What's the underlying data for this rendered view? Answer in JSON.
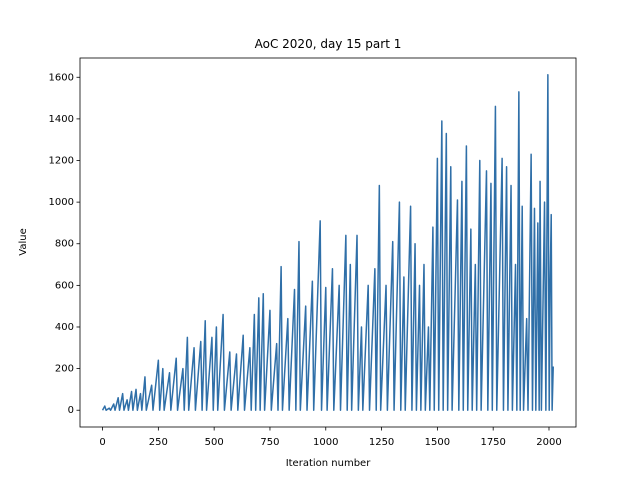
{
  "chart_data": {
    "type": "line",
    "title": "AoC 2020, day 15 part 1",
    "x_label": "Iteration number",
    "y_label": "Value",
    "color": "#2f6fa8",
    "x": [
      0,
      10,
      16,
      30,
      36,
      50,
      56,
      70,
      76,
      90,
      96,
      110,
      116,
      130,
      136,
      150,
      156,
      170,
      176,
      190,
      196,
      220,
      226,
      250,
      256,
      270,
      276,
      300,
      306,
      330,
      336,
      360,
      366,
      380,
      386,
      410,
      416,
      440,
      446,
      460,
      466,
      490,
      496,
      510,
      516,
      540,
      546,
      570,
      576,
      600,
      606,
      630,
      636,
      660,
      666,
      680,
      686,
      700,
      706,
      720,
      726,
      750,
      756,
      780,
      786,
      800,
      806,
      830,
      836,
      860,
      866,
      880,
      886,
      910,
      916,
      940,
      946,
      975,
      981,
      1000,
      1006,
      1030,
      1036,
      1060,
      1066,
      1090,
      1096,
      1110,
      1116,
      1140,
      1146,
      1160,
      1166,
      1190,
      1196,
      1220,
      1226,
      1240,
      1246,
      1270,
      1276,
      1300,
      1306,
      1330,
      1336,
      1350,
      1356,
      1380,
      1386,
      1400,
      1406,
      1420,
      1426,
      1440,
      1446,
      1460,
      1466,
      1480,
      1486,
      1500,
      1506,
      1520,
      1526,
      1540,
      1546,
      1560,
      1566,
      1590,
      1596,
      1610,
      1616,
      1630,
      1636,
      1650,
      1656,
      1670,
      1676,
      1690,
      1696,
      1720,
      1726,
      1740,
      1746,
      1760,
      1766,
      1790,
      1796,
      1810,
      1816,
      1830,
      1836,
      1850,
      1856,
      1865,
      1871,
      1880,
      1886,
      1900,
      1906,
      1920,
      1926,
      1935,
      1941,
      1950,
      1956,
      1960,
      1966,
      1980,
      1986,
      1995,
      2001,
      2005,
      2010,
      2014,
      2019
    ],
    "values": [
      0,
      20,
      0,
      10,
      0,
      30,
      0,
      60,
      0,
      80,
      0,
      50,
      0,
      90,
      0,
      100,
      0,
      80,
      0,
      160,
      0,
      120,
      0,
      240,
      0,
      200,
      0,
      180,
      0,
      250,
      0,
      200,
      0,
      350,
      0,
      300,
      0,
      330,
      0,
      430,
      0,
      350,
      0,
      400,
      0,
      460,
      0,
      280,
      0,
      270,
      0,
      360,
      0,
      300,
      0,
      460,
      0,
      540,
      0,
      560,
      0,
      480,
      0,
      320,
      0,
      690,
      0,
      440,
      0,
      580,
      0,
      810,
      0,
      500,
      0,
      620,
      0,
      910,
      0,
      590,
      0,
      680,
      0,
      600,
      0,
      840,
      0,
      700,
      0,
      840,
      0,
      400,
      0,
      600,
      0,
      680,
      0,
      1080,
      0,
      600,
      0,
      810,
      0,
      1000,
      0,
      640,
      0,
      980,
      0,
      800,
      0,
      600,
      0,
      700,
      0,
      400,
      0,
      880,
      0,
      1210,
      0,
      1390,
      0,
      1330,
      0,
      1170,
      0,
      1010,
      0,
      1100,
      0,
      1270,
      0,
      870,
      0,
      700,
      0,
      1200,
      0,
      1150,
      0,
      1090,
      0,
      1460,
      0,
      1210,
      0,
      1170,
      0,
      1080,
      0,
      700,
      0,
      1530,
      0,
      980,
      0,
      440,
      0,
      1230,
      0,
      970,
      0,
      900,
      0,
      1100,
      0,
      1000,
      0,
      1612,
      0,
      600,
      940,
      0,
      210
    ],
    "xlim": [
      -101,
      2121
    ],
    "ylim": [
      -80.6,
      1692.6
    ],
    "xticks": [
      0,
      250,
      500,
      750,
      1000,
      1250,
      1500,
      1750,
      2000
    ],
    "yticks": [
      0,
      200,
      400,
      600,
      800,
      1000,
      1200,
      1400,
      1600
    ]
  }
}
